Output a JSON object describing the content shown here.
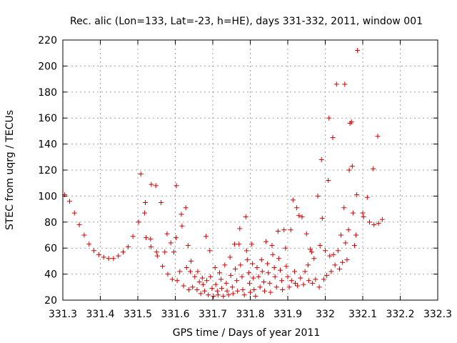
{
  "chart_data": {
    "type": "scatter",
    "title": "Rec. alic (Lon=133, Lat=-23, h=HE), days 331-332, 2011, window 001",
    "xlabel": "GPS time / Days of year 2011",
    "ylabel": "STEC from uqrg / TECUs",
    "xlim": [
      331.3,
      332.3
    ],
    "ylim": [
      20,
      220
    ],
    "x_ticks": [
      "331.3",
      "331.4",
      "331.5",
      "331.6",
      "331.7",
      "331.8",
      "331.9",
      "332",
      "332.1",
      "332.2",
      "332.3"
    ],
    "y_ticks": [
      "20",
      "40",
      "60",
      "80",
      "100",
      "120",
      "140",
      "160",
      "180",
      "200",
      "220"
    ],
    "grid": true,
    "marker": "+",
    "color": "#d00000",
    "series": [
      {
        "name": "STEC",
        "points": [
          [
            331.305,
            101
          ],
          [
            331.318,
            96
          ],
          [
            331.331,
            87
          ],
          [
            331.344,
            78
          ],
          [
            331.357,
            70
          ],
          [
            331.37,
            63
          ],
          [
            331.383,
            58
          ],
          [
            331.396,
            55
          ],
          [
            331.409,
            53
          ],
          [
            331.422,
            52
          ],
          [
            331.435,
            52
          ],
          [
            331.448,
            54
          ],
          [
            331.461,
            57
          ],
          [
            331.474,
            61
          ],
          [
            331.487,
            69
          ],
          [
            331.502,
            80
          ],
          [
            331.508,
            117
          ],
          [
            331.518,
            87
          ],
          [
            331.52,
            95
          ],
          [
            331.522,
            68
          ],
          [
            331.534,
            67
          ],
          [
            331.536,
            109
          ],
          [
            331.535,
            61
          ],
          [
            331.548,
            108
          ],
          [
            331.55,
            57
          ],
          [
            331.552,
            54
          ],
          [
            331.562,
            95
          ],
          [
            331.566,
            46
          ],
          [
            331.572,
            57
          ],
          [
            331.578,
            71
          ],
          [
            331.58,
            40
          ],
          [
            331.588,
            64
          ],
          [
            331.592,
            36
          ],
          [
            331.596,
            57
          ],
          [
            331.603,
            108
          ],
          [
            331.602,
            68
          ],
          [
            331.605,
            35
          ],
          [
            331.612,
            42
          ],
          [
            331.616,
            86
          ],
          [
            331.618,
            77
          ],
          [
            331.622,
            31
          ],
          [
            331.628,
            91
          ],
          [
            331.63,
            45
          ],
          [
            331.634,
            62
          ],
          [
            331.636,
            28
          ],
          [
            331.64,
            42
          ],
          [
            331.642,
            50
          ],
          [
            331.646,
            30
          ],
          [
            331.652,
            38
          ],
          [
            331.658,
            28
          ],
          [
            331.66,
            42
          ],
          [
            331.664,
            34
          ],
          [
            331.668,
            25
          ],
          [
            331.672,
            37
          ],
          [
            331.674,
            32
          ],
          [
            331.678,
            27
          ],
          [
            331.682,
            69
          ],
          [
            331.684,
            35
          ],
          [
            331.688,
            24
          ],
          [
            331.692,
            58
          ],
          [
            331.694,
            38
          ],
          [
            331.698,
            29
          ],
          [
            331.702,
            23
          ],
          [
            331.706,
            45
          ],
          [
            331.708,
            32
          ],
          [
            331.712,
            27
          ],
          [
            331.714,
            24
          ],
          [
            331.718,
            41
          ],
          [
            331.722,
            36
          ],
          [
            331.724,
            29
          ],
          [
            331.728,
            23
          ],
          [
            331.732,
            47
          ],
          [
            331.736,
            33
          ],
          [
            331.738,
            27
          ],
          [
            331.742,
            24
          ],
          [
            331.746,
            53
          ],
          [
            331.748,
            39
          ],
          [
            331.752,
            30
          ],
          [
            331.754,
            25
          ],
          [
            331.758,
            63
          ],
          [
            331.76,
            44
          ],
          [
            331.764,
            35
          ],
          [
            331.766,
            27
          ],
          [
            331.77,
            63
          ],
          [
            331.772,
            75
          ],
          [
            331.774,
            47
          ],
          [
            331.778,
            38
          ],
          [
            331.78,
            28
          ],
          [
            331.784,
            24
          ],
          [
            331.788,
            84
          ],
          [
            331.79,
            58
          ],
          [
            331.792,
            51
          ],
          [
            331.796,
            41
          ],
          [
            331.798,
            33
          ],
          [
            331.8,
            26
          ],
          [
            331.804,
            63
          ],
          [
            331.806,
            48
          ],
          [
            331.808,
            37
          ],
          [
            331.81,
            28
          ],
          [
            331.814,
            23
          ],
          [
            331.818,
            45
          ],
          [
            331.822,
            38
          ],
          [
            331.826,
            30
          ],
          [
            331.83,
            51
          ],
          [
            331.832,
            42
          ],
          [
            331.836,
            34
          ],
          [
            331.838,
            27
          ],
          [
            331.842,
            65
          ],
          [
            331.846,
            48
          ],
          [
            331.848,
            41
          ],
          [
            331.852,
            33
          ],
          [
            331.854,
            26
          ],
          [
            331.858,
            62
          ],
          [
            331.86,
            55
          ],
          [
            331.864,
            45
          ],
          [
            331.866,
            38
          ],
          [
            331.87,
            30
          ],
          [
            331.874,
            73
          ],
          [
            331.876,
            52
          ],
          [
            331.88,
            43
          ],
          [
            331.884,
            35
          ],
          [
            331.886,
            28
          ],
          [
            331.89,
            74
          ],
          [
            331.894,
            60
          ],
          [
            331.896,
            46
          ],
          [
            331.9,
            38
          ],
          [
            331.904,
            30
          ],
          [
            331.908,
            74
          ],
          [
            331.91,
            35
          ],
          [
            331.914,
            97
          ],
          [
            331.918,
            42
          ],
          [
            331.92,
            33
          ],
          [
            331.924,
            91
          ],
          [
            331.926,
            31
          ],
          [
            331.93,
            85
          ],
          [
            331.934,
            37
          ],
          [
            331.938,
            84
          ],
          [
            331.942,
            32
          ],
          [
            331.946,
            42
          ],
          [
            331.95,
            71
          ],
          [
            331.954,
            47
          ],
          [
            331.956,
            35
          ],
          [
            331.96,
            59
          ],
          [
            331.964,
            57
          ],
          [
            331.966,
            33
          ],
          [
            331.97,
            52
          ],
          [
            331.974,
            36
          ],
          [
            331.98,
            100
          ],
          [
            331.984,
            30
          ],
          [
            331.986,
            62
          ],
          [
            331.99,
            128
          ],
          [
            331.992,
            83
          ],
          [
            331.996,
            36
          ],
          [
            332.0,
            58
          ],
          [
            332.004,
            39
          ],
          [
            332.008,
            112
          ],
          [
            332.01,
            160
          ],
          [
            332.012,
            54
          ],
          [
            332.016,
            42
          ],
          [
            332.02,
            145
          ],
          [
            332.022,
            55
          ],
          [
            332.026,
            47
          ],
          [
            332.03,
            186
          ],
          [
            332.034,
            58
          ],
          [
            332.038,
            44
          ],
          [
            332.042,
            70
          ],
          [
            332.046,
            49
          ],
          [
            332.05,
            91
          ],
          [
            332.052,
            186
          ],
          [
            332.054,
            64
          ],
          [
            332.058,
            51
          ],
          [
            332.062,
            74
          ],
          [
            332.064,
            120
          ],
          [
            332.066,
            156
          ],
          [
            332.07,
            157
          ],
          [
            332.072,
            123
          ],
          [
            332.074,
            87
          ],
          [
            332.078,
            62
          ],
          [
            332.082,
            70
          ],
          [
            332.084,
            101
          ],
          [
            332.086,
            212
          ],
          [
            332.1,
            87
          ],
          [
            332.102,
            84
          ],
          [
            332.112,
            99
          ],
          [
            332.118,
            80
          ],
          [
            332.128,
            121
          ],
          [
            332.13,
            78
          ],
          [
            332.14,
            146
          ],
          [
            332.142,
            79
          ],
          [
            332.152,
            82
          ]
        ]
      }
    ]
  }
}
